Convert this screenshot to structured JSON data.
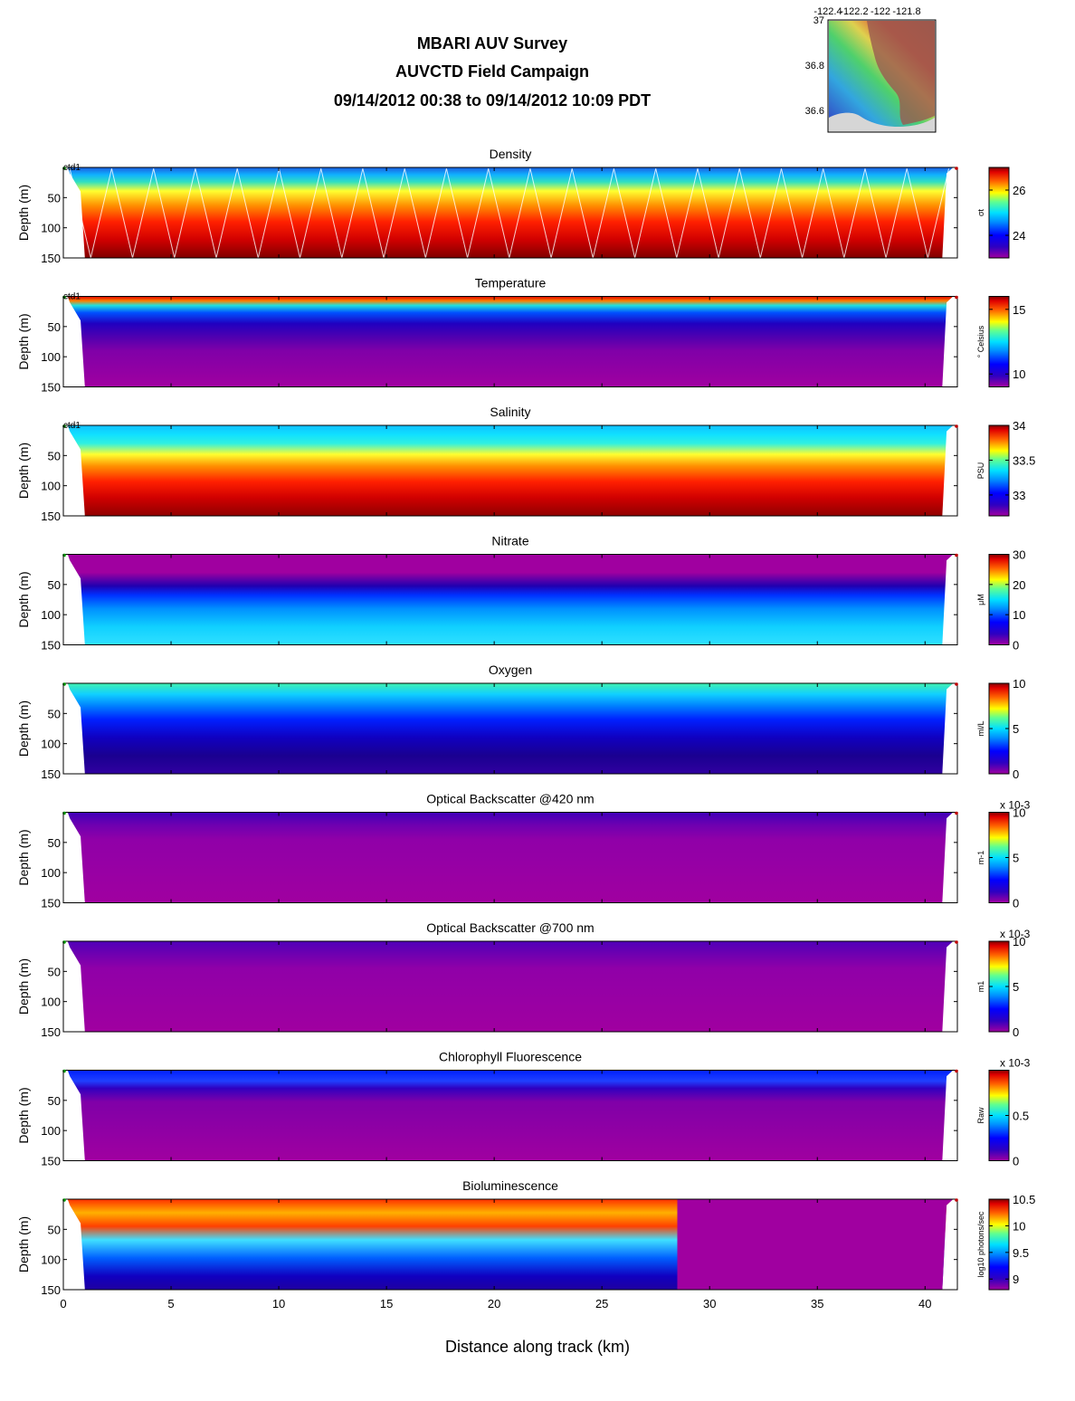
{
  "header": {
    "title": "MBARI AUV Survey",
    "subtitle": "AUVCTD Field Campaign",
    "date_range": "09/14/2012 00:38  to 09/14/2012 10:09 PDT"
  },
  "inset_map": {
    "x_ticks": [
      "-122.4",
      "-122.2",
      "-122",
      "-121.8"
    ],
    "y_ticks": [
      "37",
      "36.8",
      "36.6"
    ]
  },
  "chart_data": {
    "type": "heatmap",
    "xlabel": "Distance along track (km)",
    "ylabel": "Depth (m)",
    "xlim": [
      0,
      41.5
    ],
    "ylim": [
      150,
      0
    ],
    "x_ticks": [
      0,
      5,
      10,
      15,
      20,
      25,
      30,
      35,
      40
    ],
    "y_ticks": [
      50,
      100,
      150
    ],
    "track_label": "ctd1",
    "panels": [
      {
        "title": "Density",
        "cbar_label": "σt",
        "clim": [
          23,
          27
        ],
        "cbar_ticks": [
          "24",
          "26"
        ],
        "exponent": "",
        "track_label": "ctd1"
      },
      {
        "title": "Temperature",
        "cbar_label": "° Celsius",
        "clim": [
          9,
          16
        ],
        "cbar_ticks": [
          "10",
          "15"
        ],
        "exponent": "",
        "track_label": "ctd1"
      },
      {
        "title": "Salinity",
        "cbar_label": "PSU",
        "clim": [
          32.7,
          34
        ],
        "cbar_ticks": [
          "33",
          "33.5",
          "34"
        ],
        "exponent": "",
        "track_label": "ctd1"
      },
      {
        "title": "Nitrate",
        "cbar_label": "μM",
        "clim": [
          0,
          30
        ],
        "cbar_ticks": [
          "0",
          "10",
          "20",
          "30"
        ],
        "exponent": "",
        "track_label": ""
      },
      {
        "title": "Oxygen",
        "cbar_label": "ml/L",
        "clim": [
          0,
          10
        ],
        "cbar_ticks": [
          "0",
          "5",
          "10"
        ],
        "exponent": "",
        "track_label": ""
      },
      {
        "title": "Optical Backscatter @420 nm",
        "cbar_label": "m-1",
        "clim": [
          0,
          10
        ],
        "cbar_ticks": [
          "0",
          "5",
          "10"
        ],
        "exponent": "x 10-3",
        "track_label": ""
      },
      {
        "title": "Optical Backscatter @700 nm",
        "cbar_label": "m1",
        "clim": [
          0,
          10
        ],
        "cbar_ticks": [
          "0",
          "5",
          "10"
        ],
        "exponent": "x 10-3",
        "track_label": ""
      },
      {
        "title": "Chlorophyll Fluorescence",
        "cbar_label": "Raw",
        "clim": [
          0,
          1
        ],
        "cbar_ticks": [
          "0",
          "0.5"
        ],
        "exponent": "x 10-3",
        "track_label": ""
      },
      {
        "title": "Bioluminescence",
        "cbar_label": "log10 photons/sec",
        "clim": [
          8.8,
          10.5
        ],
        "cbar_ticks": [
          "9",
          "9.5",
          "10",
          "10.5"
        ],
        "exponent": "",
        "track_label": ""
      }
    ]
  }
}
